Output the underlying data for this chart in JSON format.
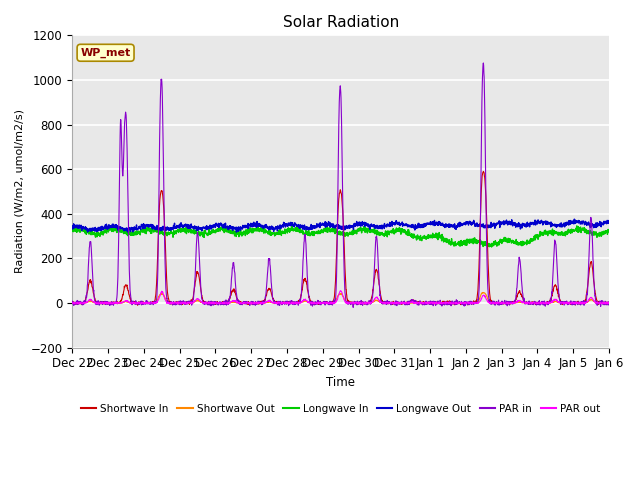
{
  "title": "Solar Radiation",
  "ylabel": "Radiation (W/m2, umol/m2/s)",
  "xlabel": "Time",
  "ylim": [
    -200,
    1200
  ],
  "plot_bg_color": "#e8e8e8",
  "grid_color": "white",
  "annotation_text": "WP_met",
  "annotation_bg": "#ffffcc",
  "annotation_border": "#aa8800",
  "xtick_labels": [
    "Dec 22",
    "Dec 23",
    "Dec 24",
    "Dec 25",
    "Dec 26",
    "Dec 27",
    "Dec 28",
    "Dec 29",
    "Dec 30",
    "Dec 31",
    "Jan 1",
    "Jan 2",
    "Jan 3",
    "Jan 4",
    "Jan 5",
    "Jan 6"
  ],
  "series": {
    "shortwave_in": {
      "color": "#cc0000",
      "label": "Shortwave In",
      "lw": 0.8
    },
    "shortwave_out": {
      "color": "#ff8800",
      "label": "Shortwave Out",
      "lw": 0.8
    },
    "longwave_in": {
      "color": "#00cc00",
      "label": "Longwave In",
      "lw": 1.0
    },
    "longwave_out": {
      "color": "#0000cc",
      "label": "Longwave Out",
      "lw": 1.0
    },
    "par_in": {
      "color": "#8800cc",
      "label": "PAR in",
      "lw": 0.8
    },
    "par_out": {
      "color": "#ff00ff",
      "label": "PAR out",
      "lw": 0.8
    }
  }
}
